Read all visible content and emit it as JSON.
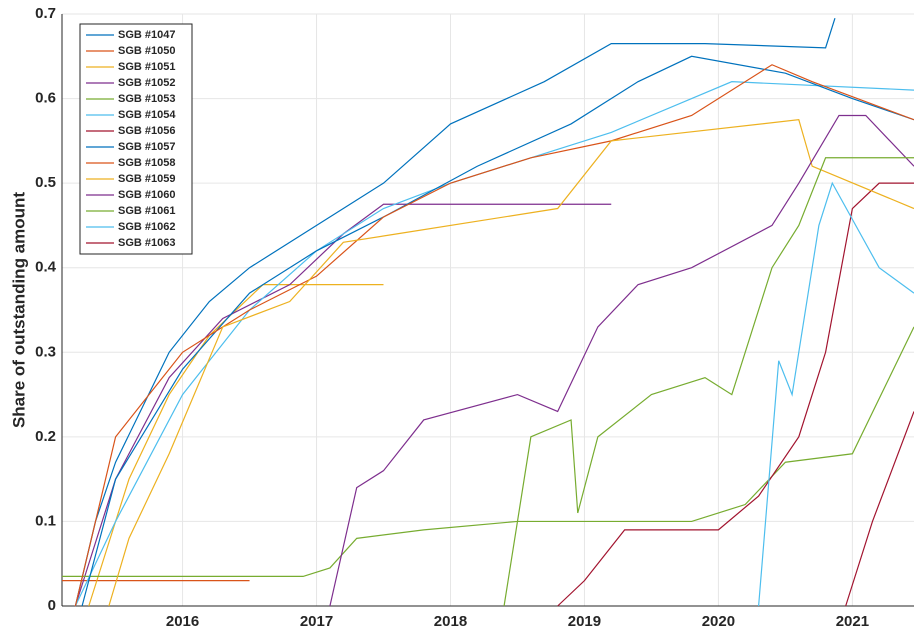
{
  "chart_data": {
    "type": "line",
    "y_label": "Share of outstanding amount",
    "xlim": [
      2015.1,
      2021.46
    ],
    "xticks": [
      2016,
      2017,
      2018,
      2019,
      2020,
      2021
    ],
    "ylim": [
      0,
      0.7
    ],
    "yticks": [
      0,
      0.1,
      0.2,
      0.3,
      0.4,
      0.5,
      0.6,
      0.7
    ],
    "grid": true,
    "legend": "upper-left",
    "series": [
      {
        "name": "SGB #1047",
        "color": "#0072BD",
        "x": [
          2015.2,
          2015.35,
          2015.5,
          2015.9,
          2016.2,
          2016.5,
          2016.9,
          2017.2,
          2017.5,
          2018.0,
          2018.7,
          2019.2,
          2019.9,
          2020.8,
          2020.87
        ],
        "values": [
          0,
          0.1,
          0.17,
          0.3,
          0.36,
          0.4,
          0.44,
          0.47,
          0.5,
          0.57,
          0.62,
          0.665,
          0.665,
          0.66,
          0.695
        ]
      },
      {
        "name": "SGB #1050",
        "color": "#D95319",
        "x": [
          2015.1,
          2016.5
        ],
        "values": [
          0.03,
          0.03
        ]
      },
      {
        "name": "SGB #1051",
        "color": "#EDB120",
        "x": [
          2015.3,
          2015.6,
          2015.9,
          2016.2,
          2016.6,
          2017.5
        ],
        "values": [
          0,
          0.15,
          0.25,
          0.32,
          0.38,
          0.38
        ]
      },
      {
        "name": "SGB #1052",
        "color": "#7E2F8E",
        "x": [
          2015.2,
          2015.5,
          2015.9,
          2016.3,
          2016.8,
          2017.2,
          2017.5,
          2019.2
        ],
        "values": [
          0,
          0.15,
          0.27,
          0.34,
          0.38,
          0.44,
          0.475,
          0.475
        ]
      },
      {
        "name": "SGB #1053",
        "color": "#77AC30",
        "x": [
          2015.1,
          2016.9,
          2017.1,
          2017.3,
          2017.8,
          2018.5,
          2019.8,
          2020.2,
          2020.5,
          2021.0,
          2021.46
        ],
        "values": [
          0.035,
          0.035,
          0.045,
          0.08,
          0.09,
          0.1,
          0.1,
          0.12,
          0.17,
          0.18,
          0.33
        ]
      },
      {
        "name": "SGB #1054",
        "color": "#4DBEEE",
        "x": [
          2015.2,
          2015.5,
          2016.0,
          2016.5,
          2017.0,
          2017.5,
          2018.0,
          2018.6,
          2019.2,
          2019.8,
          2020.1,
          2021.46
        ],
        "values": [
          0,
          0.1,
          0.25,
          0.35,
          0.42,
          0.47,
          0.5,
          0.53,
          0.56,
          0.6,
          0.62,
          0.61
        ]
      },
      {
        "name": "SGB #1056",
        "color": "#A2142F",
        "x": [
          2018.8,
          2019.0,
          2019.3,
          2020.0,
          2020.3,
          2020.6,
          2020.8,
          2021.0,
          2021.2,
          2021.46
        ],
        "values": [
          0,
          0.03,
          0.09,
          0.09,
          0.13,
          0.2,
          0.3,
          0.47,
          0.5,
          0.5
        ]
      },
      {
        "name": "SGB #1057",
        "color": "#0072BD",
        "x": [
          2015.25,
          2015.5,
          2016.0,
          2016.5,
          2017.0,
          2017.5,
          2018.2,
          2018.9,
          2019.4,
          2019.8,
          2020.5,
          2021.0,
          2021.46
        ],
        "values": [
          0,
          0.15,
          0.28,
          0.37,
          0.42,
          0.46,
          0.52,
          0.57,
          0.62,
          0.65,
          0.63,
          0.6,
          0.575
        ]
      },
      {
        "name": "SGB #1058",
        "color": "#D95319",
        "x": [
          2015.2,
          2015.5,
          2016.0,
          2016.5,
          2017.0,
          2017.5,
          2018.0,
          2018.6,
          2019.2,
          2019.8,
          2020.4,
          2020.7,
          2021.46
        ],
        "values": [
          0,
          0.2,
          0.3,
          0.35,
          0.39,
          0.46,
          0.5,
          0.53,
          0.55,
          0.58,
          0.64,
          0.62,
          0.575
        ]
      },
      {
        "name": "SGB #1059",
        "color": "#EDB120",
        "x": [
          2015.45,
          2015.6,
          2015.9,
          2016.3,
          2016.8,
          2017.2,
          2017.6,
          2018.8,
          2019.2,
          2020.6,
          2020.7,
          2021.46
        ],
        "values": [
          0,
          0.08,
          0.18,
          0.33,
          0.36,
          0.43,
          0.44,
          0.47,
          0.55,
          0.575,
          0.52,
          0.47
        ]
      },
      {
        "name": "SGB #1060",
        "color": "#7E2F8E",
        "x": [
          2017.1,
          2017.3,
          2017.5,
          2017.8,
          2018.5,
          2018.8,
          2019.1,
          2019.4,
          2019.8,
          2020.4,
          2020.6,
          2020.9,
          2021.1,
          2021.46
        ],
        "values": [
          0,
          0.14,
          0.16,
          0.22,
          0.25,
          0.23,
          0.33,
          0.38,
          0.4,
          0.45,
          0.5,
          0.58,
          0.58,
          0.52
        ]
      },
      {
        "name": "SGB #1061",
        "color": "#77AC30",
        "x": [
          2018.4,
          2018.6,
          2018.9,
          2018.95,
          2019.1,
          2019.5,
          2019.9,
          2020.1,
          2020.4,
          2020.6,
          2020.8,
          2021.46
        ],
        "values": [
          0,
          0.2,
          0.22,
          0.11,
          0.2,
          0.25,
          0.27,
          0.25,
          0.4,
          0.45,
          0.53,
          0.53
        ]
      },
      {
        "name": "SGB #1062",
        "color": "#4DBEEE",
        "x": [
          2020.3,
          2020.45,
          2020.55,
          2020.75,
          2020.85,
          2021.2,
          2021.46
        ],
        "values": [
          0,
          0.29,
          0.25,
          0.45,
          0.5,
          0.4,
          0.37
        ]
      },
      {
        "name": "SGB #1063",
        "color": "#A2142F",
        "x": [
          2020.95,
          2021.15,
          2021.46
        ],
        "values": [
          0,
          0.1,
          0.23
        ]
      }
    ]
  }
}
